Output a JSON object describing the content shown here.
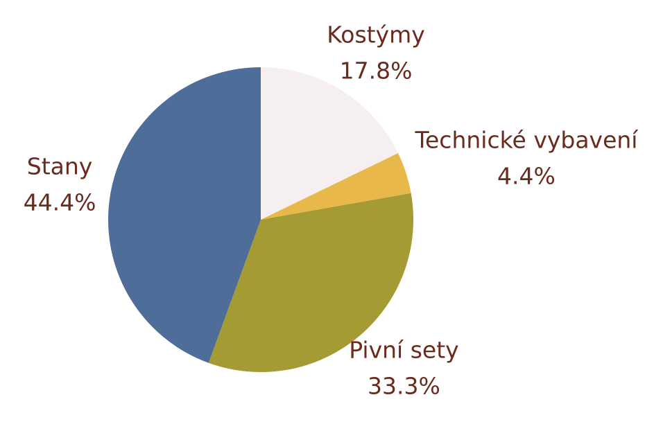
{
  "chart_data": {
    "type": "pie",
    "categories": [
      "Kostýmy",
      "Technické vybavení",
      "Pivní sety",
      "Stany"
    ],
    "values": [
      17.8,
      4.4,
      33.3,
      44.4
    ],
    "value_labels": [
      "17.8%",
      "4.4%",
      "33.3%",
      "44.4%"
    ],
    "colors": [
      "#f5f0ef",
      "#e8b84b",
      "#a59b34",
      "#4e6d98"
    ]
  }
}
